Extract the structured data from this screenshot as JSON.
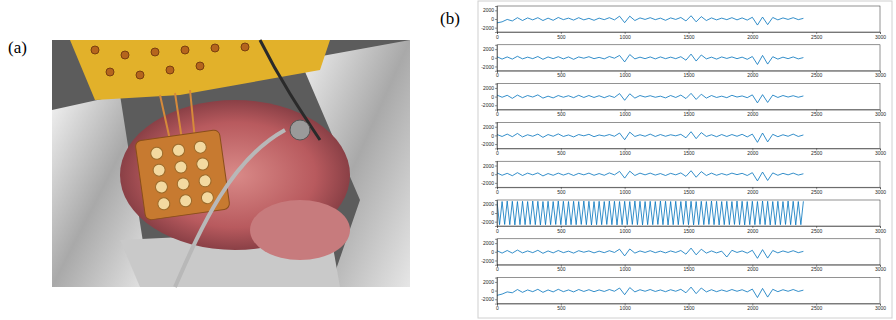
{
  "panel_labels": [
    "(a)",
    "(b)"
  ],
  "chart_data": [
    {
      "type": "line",
      "color": "#0072bd",
      "x": [
        0,
        40,
        80,
        120,
        160,
        200,
        240,
        280,
        320,
        360,
        400,
        440,
        480,
        520,
        560,
        600,
        640,
        680,
        720,
        760,
        800,
        840,
        880,
        920,
        960,
        1000,
        1040,
        1080,
        1120,
        1160,
        1200,
        1240,
        1280,
        1320,
        1360,
        1400,
        1440,
        1480,
        1520,
        1560,
        1600,
        1640,
        1680,
        1720,
        1760,
        1800,
        1840,
        1880,
        1920,
        1960,
        2000,
        2040,
        2080,
        2120,
        2160,
        2200,
        2240,
        2280,
        2320,
        2360,
        2400
      ],
      "values": [
        -900,
        -650,
        -100,
        -450,
        300,
        -350,
        250,
        -200,
        300,
        -350,
        200,
        -300,
        350,
        -150,
        200,
        -250,
        300,
        -200,
        150,
        -300,
        200,
        -150,
        300,
        -200,
        650,
        -850,
        650,
        -350,
        250,
        -100,
        300,
        -150,
        200,
        -300,
        250,
        -100,
        350,
        -450,
        750,
        -650,
        550,
        -350,
        250,
        -200,
        200,
        -150,
        300,
        -200,
        250,
        -250,
        400,
        -1400,
        450,
        -1300,
        350,
        -200,
        250,
        -100,
        300,
        -150,
        150
      ],
      "xlim": [
        0,
        3000
      ],
      "xticks": [
        0,
        500,
        1000,
        1500,
        2000,
        2500,
        3000
      ],
      "ylim": [
        -3000,
        3000
      ],
      "yticks": [
        -2000,
        0,
        2000
      ]
    },
    {
      "type": "line",
      "color": "#0072bd",
      "x": [
        0,
        40,
        80,
        120,
        160,
        200,
        240,
        280,
        320,
        360,
        400,
        440,
        480,
        520,
        560,
        600,
        640,
        680,
        720,
        760,
        800,
        840,
        880,
        920,
        960,
        1000,
        1040,
        1080,
        1120,
        1160,
        1200,
        1240,
        1280,
        1320,
        1360,
        1400,
        1440,
        1480,
        1520,
        1560,
        1600,
        1640,
        1680,
        1720,
        1760,
        1800,
        1840,
        1880,
        1920,
        1960,
        2000,
        2040,
        2080,
        2120,
        2160,
        2200,
        2240,
        2280,
        2320,
        2360,
        2400
      ],
      "values": [
        250,
        -300,
        200,
        -300,
        350,
        -250,
        150,
        -200,
        300,
        -350,
        200,
        -200,
        250,
        -250,
        200,
        -350,
        200,
        -100,
        250,
        -200,
        100,
        -250,
        300,
        -100,
        550,
        -950,
        750,
        -250,
        150,
        -200,
        200,
        -250,
        200,
        -200,
        150,
        -200,
        250,
        -550,
        850,
        -750,
        650,
        -250,
        150,
        -300,
        200,
        -150,
        200,
        -200,
        150,
        -350,
        300,
        -1550,
        550,
        -1450,
        250,
        -300,
        150,
        -200,
        200,
        -250,
        50
      ],
      "xlim": [
        0,
        3000
      ],
      "xticks": [
        0,
        500,
        1000,
        1500,
        2000,
        2500,
        3000
      ],
      "ylim": [
        -3000,
        3000
      ],
      "yticks": [
        -2000,
        0,
        2000
      ]
    },
    {
      "type": "line",
      "color": "#0072bd",
      "x": [
        0,
        40,
        80,
        120,
        160,
        200,
        240,
        280,
        320,
        360,
        400,
        440,
        480,
        520,
        560,
        600,
        640,
        680,
        720,
        760,
        800,
        840,
        880,
        920,
        960,
        1000,
        1040,
        1080,
        1120,
        1160,
        1200,
        1240,
        1280,
        1320,
        1360,
        1400,
        1440,
        1480,
        1520,
        1560,
        1600,
        1640,
        1680,
        1720,
        1760,
        1800,
        1840,
        1880,
        1920,
        1960,
        2000,
        2040,
        2080,
        2120,
        2160,
        2200,
        2240,
        2280,
        2320,
        2360,
        2400
      ],
      "values": [
        350,
        -150,
        300,
        -400,
        350,
        -250,
        250,
        -100,
        400,
        -350,
        100,
        -300,
        250,
        -150,
        200,
        -250,
        300,
        -200,
        250,
        -200,
        200,
        -250,
        200,
        -200,
        700,
        -850,
        650,
        -350,
        250,
        -100,
        200,
        -150,
        100,
        -300,
        250,
        -200,
        350,
        -450,
        750,
        -650,
        550,
        -350,
        250,
        -200,
        100,
        -250,
        300,
        -100,
        150,
        -250,
        400,
        -1450,
        450,
        -1350,
        350,
        -200,
        250,
        -100,
        200,
        -150,
        150
      ],
      "xlim": [
        0,
        3000
      ],
      "xticks": [
        0,
        500,
        1000,
        1500,
        2000,
        2500,
        3000
      ],
      "ylim": [
        -3000,
        3000
      ],
      "yticks": [
        -2000,
        0,
        2000
      ]
    },
    {
      "type": "line",
      "color": "#0072bd",
      "x": [
        0,
        40,
        80,
        120,
        160,
        200,
        240,
        280,
        320,
        360,
        400,
        440,
        480,
        520,
        560,
        600,
        640,
        680,
        720,
        760,
        800,
        840,
        880,
        920,
        960,
        1000,
        1040,
        1080,
        1120,
        1160,
        1200,
        1240,
        1280,
        1320,
        1360,
        1400,
        1440,
        1480,
        1520,
        1560,
        1600,
        1640,
        1680,
        1720,
        1760,
        1800,
        1840,
        1880,
        1920,
        1960,
        2000,
        2040,
        2080,
        2120,
        2160,
        2200,
        2240,
        2280,
        2320,
        2360,
        2400
      ],
      "values": [
        200,
        -250,
        300,
        -300,
        450,
        -350,
        150,
        -200,
        300,
        -450,
        200,
        -200,
        350,
        -250,
        100,
        -350,
        200,
        -100,
        250,
        -300,
        100,
        -150,
        200,
        -200,
        550,
        -1000,
        750,
        -250,
        150,
        -200,
        300,
        -250,
        200,
        -200,
        150,
        -100,
        250,
        -550,
        850,
        -750,
        650,
        -250,
        150,
        -300,
        200,
        -250,
        200,
        -200,
        250,
        -350,
        300,
        -1600,
        550,
        -1500,
        250,
        -300,
        150,
        -200,
        300,
        -250,
        100
      ],
      "xlim": [
        0,
        3000
      ],
      "xticks": [
        0,
        500,
        1000,
        1500,
        2000,
        2500,
        3000
      ],
      "ylim": [
        -3000,
        3000
      ],
      "yticks": [
        -2000,
        0,
        2000
      ]
    },
    {
      "type": "line",
      "color": "#0072bd",
      "x": [
        0,
        40,
        80,
        120,
        160,
        200,
        240,
        280,
        320,
        360,
        400,
        440,
        480,
        520,
        560,
        600,
        640,
        680,
        720,
        760,
        800,
        840,
        880,
        920,
        960,
        1000,
        1040,
        1080,
        1120,
        1160,
        1200,
        1240,
        1280,
        1320,
        1360,
        1400,
        1440,
        1480,
        1520,
        1560,
        1600,
        1640,
        1680,
        1720,
        1760,
        1800,
        1840,
        1880,
        1920,
        1960,
        2000,
        2040,
        2080,
        2120,
        2160,
        2200,
        2240,
        2280,
        2320,
        2360,
        2400
      ],
      "values": [
        300,
        -250,
        200,
        -350,
        350,
        -300,
        250,
        -150,
        300,
        -400,
        150,
        -250,
        250,
        -200,
        200,
        -300,
        200,
        -150,
        250,
        -250,
        150,
        -250,
        300,
        -150,
        650,
        -900,
        700,
        -300,
        250,
        -150,
        250,
        -200,
        150,
        -300,
        200,
        -150,
        300,
        -500,
        800,
        -700,
        600,
        -300,
        250,
        -250,
        150,
        -200,
        250,
        -100,
        200,
        -300,
        350,
        -1550,
        500,
        -1450,
        300,
        -250,
        200,
        -150,
        250,
        -200,
        100
      ],
      "xlim": [
        0,
        3000
      ],
      "xticks": [
        0,
        500,
        1000,
        1500,
        2000,
        2500,
        3000
      ],
      "ylim": [
        -3000,
        3000
      ],
      "yticks": [
        -2000,
        0,
        2000
      ]
    },
    {
      "type": "line",
      "color": "#0072bd",
      "x": [
        0,
        20,
        40,
        60,
        80,
        100,
        120,
        140,
        160,
        180,
        200,
        220,
        240,
        260,
        280,
        300,
        320,
        340,
        360,
        380,
        400,
        420,
        440,
        460,
        480,
        500,
        520,
        540,
        560,
        580,
        600,
        620,
        640,
        660,
        680,
        700,
        720,
        740,
        760,
        780,
        800,
        820,
        840,
        860,
        880,
        900,
        920,
        940,
        960,
        980,
        1000,
        1020,
        1040,
        1060,
        1080,
        1100,
        1120,
        1140,
        1160,
        1180,
        1200,
        1220,
        1240,
        1260,
        1280,
        1300,
        1320,
        1340,
        1360,
        1380,
        1400,
        1420,
        1440,
        1460,
        1480,
        1500,
        1520,
        1540,
        1560,
        1580,
        1600,
        1620,
        1640,
        1660,
        1680,
        1700,
        1720,
        1740,
        1760,
        1780,
        1800,
        1820,
        1840,
        1860,
        1880,
        1900,
        1920,
        1940,
        1960,
        1980,
        2000,
        2020,
        2040,
        2060,
        2080,
        2100,
        2120,
        2140,
        2160,
        2180,
        2200,
        2220,
        2240,
        2260,
        2280,
        2300,
        2320,
        2340,
        2360,
        2380,
        2400
      ],
      "values": [
        2700,
        -2700,
        2650,
        -2650,
        2750,
        -2700,
        2700,
        -2750,
        2650,
        -2700,
        2700,
        -2700,
        2650,
        -2650,
        2750,
        -2700,
        2700,
        -2750,
        2650,
        -2700,
        2700,
        -2700,
        2650,
        -2650,
        2750,
        -2700,
        2700,
        -2750,
        2650,
        -2700,
        2700,
        -2700,
        2650,
        -2650,
        2750,
        -2700,
        2700,
        -2750,
        2650,
        -2700,
        2700,
        -2700,
        2650,
        -2650,
        2750,
        -2700,
        2700,
        -2750,
        2650,
        -2700,
        2700,
        -2700,
        2650,
        -2650,
        2750,
        -2700,
        2700,
        -2750,
        2650,
        -2700,
        2700,
        -2700,
        2650,
        -2650,
        2750,
        -2700,
        2700,
        -2750,
        2650,
        -2700,
        2700,
        -2700,
        2650,
        -2650,
        2750,
        -2700,
        2700,
        -2750,
        2650,
        -2700,
        2700,
        -2700,
        2650,
        -2650,
        2750,
        -2700,
        2700,
        -2750,
        2650,
        -2700,
        2700,
        -2700,
        2650,
        -2650,
        2750,
        -2700,
        2700,
        -2750,
        2650,
        -2700,
        2700,
        -2700,
        2650,
        -2650,
        2750,
        -2700,
        2700,
        -2750,
        2650,
        -2700,
        2700,
        -2700,
        2650,
        -2650,
        2750,
        -2700,
        2700,
        -2750,
        2650,
        -2700,
        2700
      ],
      "xlim": [
        0,
        3000
      ],
      "xticks": [
        0,
        500,
        1000,
        1500,
        2000,
        2500,
        3000
      ],
      "ylim": [
        -3000,
        3000
      ],
      "yticks": [
        -2000,
        0,
        2000
      ]
    },
    {
      "type": "line",
      "color": "#0072bd",
      "x": [
        0,
        40,
        80,
        120,
        160,
        200,
        240,
        280,
        320,
        360,
        400,
        440,
        480,
        520,
        560,
        600,
        640,
        680,
        720,
        760,
        800,
        840,
        880,
        920,
        960,
        1000,
        1040,
        1080,
        1120,
        1160,
        1200,
        1240,
        1280,
        1320,
        1360,
        1400,
        1440,
        1480,
        1520,
        1560,
        1600,
        1640,
        1680,
        1720,
        1760,
        1800,
        1840,
        1880,
        1920,
        1960,
        2000,
        2040,
        2080,
        2120,
        2160,
        2200,
        2240,
        2280,
        2320,
        2360,
        2400
      ],
      "values": [
        250,
        -300,
        300,
        -300,
        400,
        -250,
        200,
        -200,
        350,
        -350,
        200,
        -250,
        300,
        -200,
        150,
        -300,
        250,
        -100,
        200,
        -250,
        150,
        -200,
        250,
        -150,
        600,
        -950,
        650,
        -300,
        200,
        -150,
        250,
        -200,
        150,
        -250,
        200,
        -150,
        300,
        -550,
        850,
        -700,
        600,
        -300,
        200,
        -250,
        150,
        -1200,
        350,
        -150,
        200,
        -300,
        350,
        -1500,
        500,
        -1450,
        300,
        -250,
        200,
        -150,
        250,
        -200,
        100
      ],
      "xlim": [
        0,
        3000
      ],
      "xticks": [
        0,
        500,
        1000,
        1500,
        2000,
        2500,
        3000
      ],
      "ylim": [
        -3000,
        3000
      ],
      "yticks": [
        -2000,
        0,
        2000
      ]
    },
    {
      "type": "line",
      "color": "#0072bd",
      "x": [
        0,
        40,
        80,
        120,
        160,
        200,
        240,
        280,
        320,
        360,
        400,
        440,
        480,
        520,
        560,
        600,
        640,
        680,
        720,
        760,
        800,
        840,
        880,
        920,
        960,
        1000,
        1040,
        1080,
        1120,
        1160,
        1200,
        1240,
        1280,
        1320,
        1360,
        1400,
        1440,
        1480,
        1520,
        1560,
        1600,
        1640,
        1680,
        1720,
        1760,
        1800,
        1840,
        1880,
        1920,
        1960,
        2000,
        2040,
        2080,
        2120,
        2160,
        2200,
        2240,
        2280,
        2320,
        2360,
        2400
      ],
      "values": [
        -1100,
        -800,
        -300,
        -500,
        250,
        -400,
        150,
        -250,
        300,
        -400,
        150,
        -300,
        300,
        -250,
        150,
        -300,
        250,
        -200,
        200,
        -250,
        150,
        -200,
        250,
        -150,
        600,
        -950,
        700,
        -300,
        200,
        -150,
        250,
        -200,
        150,
        -250,
        200,
        -150,
        300,
        -500,
        800,
        -700,
        600,
        -300,
        200,
        -250,
        150,
        -200,
        250,
        -150,
        200,
        -300,
        350,
        -1600,
        500,
        -1500,
        300,
        -250,
        200,
        -150,
        250,
        -200,
        100
      ],
      "xlim": [
        0,
        3000
      ],
      "xticks": [
        0,
        500,
        1000,
        1500,
        2000,
        2500,
        3000
      ],
      "ylim": [
        -3000,
        3000
      ],
      "yticks": [
        -2000,
        0,
        2000
      ]
    }
  ]
}
